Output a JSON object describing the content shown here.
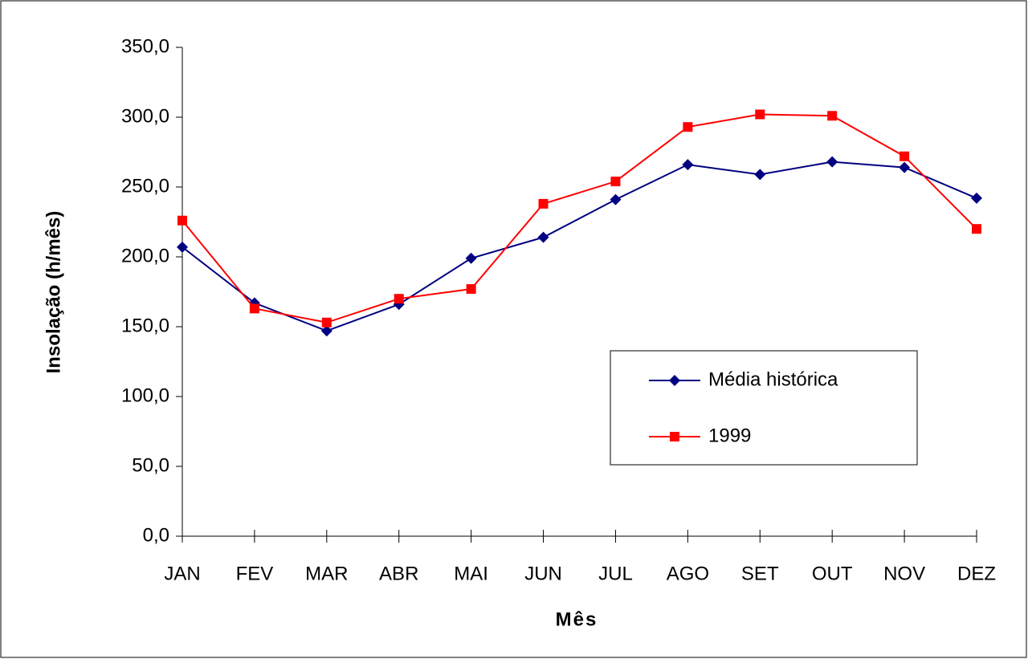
{
  "chart_data": {
    "type": "line",
    "x_label": "Mês",
    "y_label": "Insolação (h/mês)",
    "categories": [
      "JAN",
      "FEV",
      "MAR",
      "ABR",
      "MAI",
      "JUN",
      "JUL",
      "AGO",
      "SET",
      "OUT",
      "NOV",
      "DEZ"
    ],
    "series": [
      {
        "name": "Média histórica",
        "color": "#000080",
        "marker": "diamond",
        "values": [
          207,
          167,
          147,
          166,
          199,
          214,
          241,
          266,
          259,
          268,
          264,
          242
        ]
      },
      {
        "name": "1999",
        "color": "#ff0000",
        "marker": "square",
        "values": [
          226,
          163,
          153,
          170,
          177,
          238,
          254,
          293,
          302,
          301,
          272,
          220
        ]
      }
    ],
    "ylim": [
      0,
      350
    ],
    "yticks": [
      {
        "value": 0,
        "label": "0,0"
      },
      {
        "value": 50,
        "label": "50,0"
      },
      {
        "value": 100,
        "label": "100,0"
      },
      {
        "value": 150,
        "label": "150,0"
      },
      {
        "value": 200,
        "label": "200,0"
      },
      {
        "value": 250,
        "label": "250,0"
      },
      {
        "value": 300,
        "label": "300,0"
      },
      {
        "value": 350,
        "label": "350,0"
      }
    ],
    "grid": false,
    "legend": "center-right"
  }
}
